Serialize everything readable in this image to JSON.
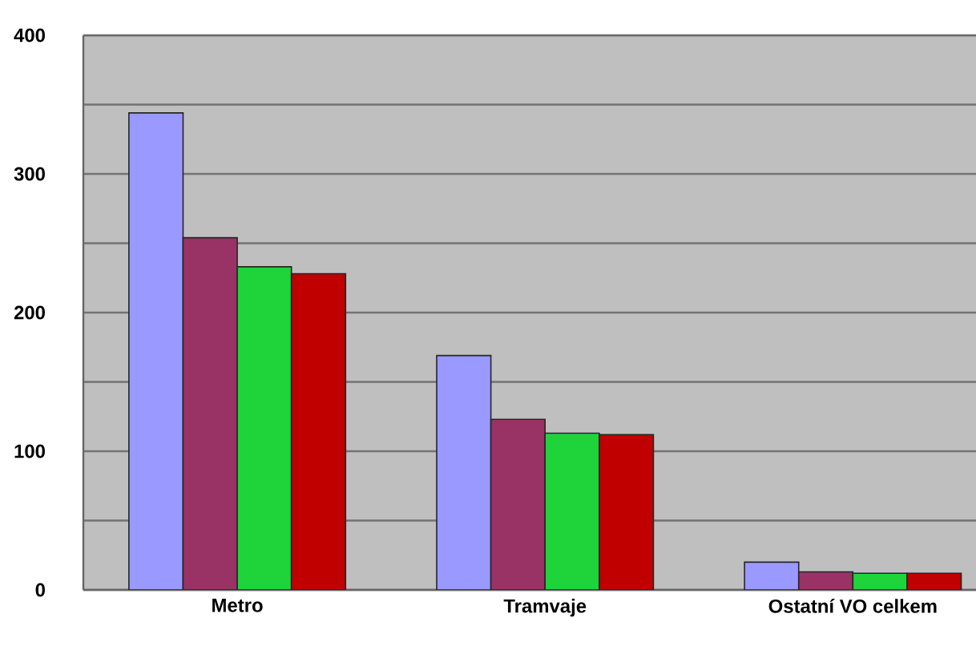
{
  "chart_data": {
    "type": "bar",
    "categories": [
      "Metro",
      "Tramvaje",
      "Ostatní VO celkem"
    ],
    "series": [
      {
        "color": "#9999ff",
        "values": [
          344,
          169,
          20
        ]
      },
      {
        "color": "#993366",
        "values": [
          254,
          123,
          13
        ]
      },
      {
        "color": "#1ed43a",
        "values": [
          233,
          113,
          12
        ]
      },
      {
        "color": "#c00000",
        "values": [
          228,
          112,
          12
        ]
      }
    ],
    "ylim": [
      0,
      400
    ],
    "yticks": [
      0,
      {
        "value": 50,
        "label": null
      },
      100,
      {
        "value": 150,
        "label": null
      },
      200,
      {
        "value": 250,
        "label": null
      },
      300,
      {
        "value": 350,
        "label": null
      },
      400
    ],
    "grid": "y"
  }
}
